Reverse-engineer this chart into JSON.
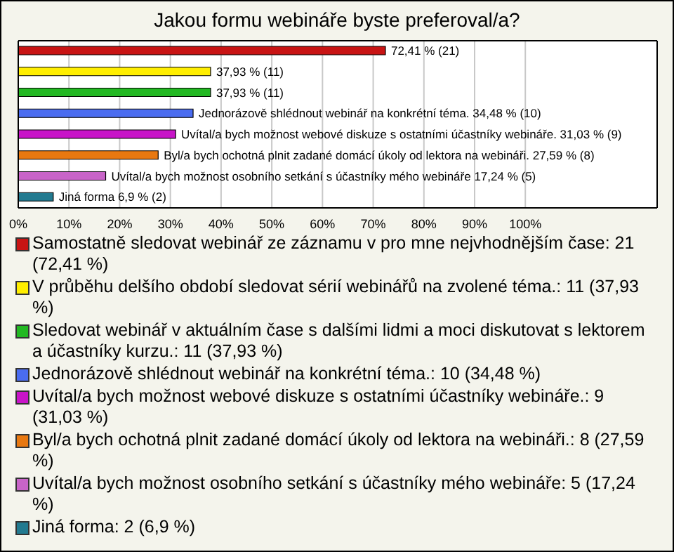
{
  "chart_data": {
    "type": "bar",
    "orientation": "horizontal",
    "stacked": true,
    "title": "Jakou formu webináře byste preferoval/a?",
    "categories": [
      null,
      null,
      null,
      null,
      null,
      null,
      null,
      null
    ],
    "series": [
      {
        "name": "Samostatně sledovat webinář ze záznamu v pro mne nejvhodnějším čase: 21 (72,41 %)",
        "color": "#c81414",
        "values": [
          72.41,
          null,
          null,
          null,
          null,
          null,
          null,
          null
        ],
        "value_labels": [
          "72,41 % (21)",
          null,
          null,
          null,
          null,
          null,
          null,
          null
        ]
      },
      {
        "name": "V průběhu delšího období sledovat sérií webinářů na zvolené téma.: 11 (37,93 %)",
        "color": "#ffee00",
        "values": [
          null,
          37.93,
          null,
          null,
          null,
          null,
          null,
          null
        ],
        "value_labels": [
          null,
          "37,93 % (11)",
          null,
          null,
          null,
          null,
          null,
          null
        ]
      },
      {
        "name": "Sledovat webinář v aktuálním čase s dalšími lidmi a moci diskutovat s lektorem a účastníky kurzu.: 11 (37,93 %)",
        "color": "#22b822",
        "values": [
          null,
          null,
          37.93,
          null,
          null,
          null,
          null,
          null
        ],
        "value_labels": [
          null,
          null,
          "37,93 % (11)",
          null,
          null,
          null,
          null,
          null
        ]
      },
      {
        "name": "Jednorázově shlédnout webinář na konkrétní téma.: 10 (34,48 %)",
        "color": "#4a6cf0",
        "values": [
          null,
          null,
          null,
          34.48,
          null,
          null,
          null,
          null
        ],
        "value_labels": [
          null,
          null,
          null,
          "Jednorázově shlédnout webinář na konkrétní téma. 34,48 % (10)",
          null,
          null,
          null,
          null
        ]
      },
      {
        "name": "Uvítal/a bych možnost webové diskuze s ostatními účastníky webináře.: 9 (31,03 %)",
        "color": "#c814c8",
        "values": [
          null,
          null,
          null,
          null,
          31.03,
          null,
          null,
          null
        ],
        "value_labels": [
          null,
          null,
          null,
          null,
          "Uvítal/a bych možnost webové diskuze s ostatními účastníky webináře. 31,03 % (9)",
          null,
          null,
          null
        ]
      },
      {
        "name": "Byl/a bych ochotná plnit zadané domácí úkoly od lektora na webináři.: 8 (27,59 %)",
        "color": "#e87810",
        "values": [
          null,
          null,
          null,
          null,
          null,
          27.59,
          null,
          null
        ],
        "value_labels": [
          null,
          null,
          null,
          null,
          null,
          "Byl/a bych ochotná plnit zadané domácí úkoly od lektora na webináři. 27,59 % (8)",
          null,
          null
        ]
      },
      {
        "name": "Uvítal/a bych možnost osobního setkání s účastníky mého webináře: 5 (17,24 %)",
        "color": "#c864c8",
        "values": [
          null,
          null,
          null,
          null,
          null,
          null,
          17.24,
          null
        ],
        "value_labels": [
          null,
          null,
          null,
          null,
          null,
          null,
          "Uvítal/a bych možnost osobního setkání s účastníky mého webináře 17,24 % (5)",
          null
        ]
      },
      {
        "name": "Jiná forma: 2 (6,9 %)",
        "color": "#227a90",
        "values": [
          null,
          null,
          null,
          null,
          null,
          null,
          null,
          6.9
        ],
        "value_labels": [
          null,
          null,
          null,
          null,
          null,
          null,
          null,
          "Jiná forma 6,9 % (2)"
        ]
      }
    ],
    "xlim": [
      0,
      126
    ],
    "xticks": [
      {
        "value": 0,
        "label": "0%"
      },
      {
        "value": 10,
        "label": "10%"
      },
      {
        "value": 20,
        "label": "20%"
      },
      {
        "value": 30,
        "label": "30%"
      },
      {
        "value": 40,
        "label": "40%"
      },
      {
        "value": 50,
        "label": "50%"
      },
      {
        "value": 60,
        "label": "60%"
      },
      {
        "value": 70,
        "label": "70%"
      },
      {
        "value": 80,
        "label": "80%"
      },
      {
        "value": 90,
        "label": "90%"
      },
      {
        "value": 100,
        "label": "100%"
      }
    ],
    "grid": "x",
    "tick_labels": "x",
    "legend": "bottom"
  }
}
